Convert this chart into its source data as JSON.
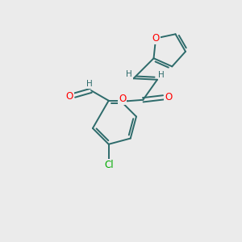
{
  "background_color": "#ebebeb",
  "bond_color": "#2d6b6b",
  "atom_colors": {
    "O": "#ff0000",
    "Cl": "#00aa00",
    "H": "#2d6b6b",
    "C": "#2d6b6b"
  },
  "figsize": [
    3.0,
    3.0
  ],
  "dpi": 100
}
